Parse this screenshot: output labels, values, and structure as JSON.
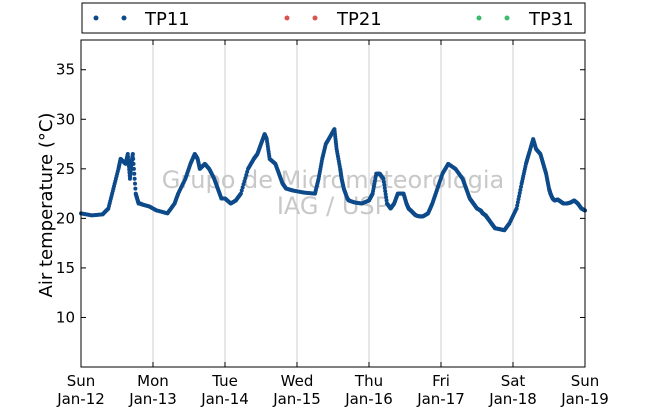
{
  "chart_data": {
    "type": "scatter",
    "ylabel": "Air temperature (°C)",
    "ylim": [
      5,
      38
    ],
    "y_ticks": [
      10,
      15,
      20,
      25,
      30,
      35
    ],
    "x_range_days": [
      0,
      7
    ],
    "x_ticks": [
      {
        "day": "Sun",
        "date": "Jan-12"
      },
      {
        "day": "Mon",
        "date": "Jan-13"
      },
      {
        "day": "Tue",
        "date": "Jan-14"
      },
      {
        "day": "Wed",
        "date": "Jan-15"
      },
      {
        "day": "Thu",
        "date": "Jan-16"
      },
      {
        "day": "Fri",
        "date": "Jan-17"
      },
      {
        "day": "Sat",
        "date": "Jan-18"
      },
      {
        "day": "Sun",
        "date": "Jan-19"
      }
    ],
    "vertical_grid": true,
    "legend_position": "top",
    "watermark": [
      "Grupo de Micrometeorologia",
      "IAG / USP"
    ],
    "series": [
      {
        "name": "TP11",
        "color": "#0d4a8a",
        "x": [
          0.0,
          0.15,
          0.3,
          0.38,
          0.45,
          0.52,
          0.55,
          0.62,
          0.65,
          0.68,
          0.7,
          0.72,
          0.76,
          0.78,
          0.8,
          0.82,
          0.85,
          0.95,
          1.05,
          1.2,
          1.3,
          1.35,
          1.45,
          1.52,
          1.58,
          1.62,
          1.65,
          1.72,
          1.78,
          1.85,
          1.9,
          1.95,
          2.0,
          2.08,
          2.15,
          2.22,
          2.32,
          2.4,
          2.45,
          2.5,
          2.55,
          2.58,
          2.62,
          2.7,
          2.75,
          2.8,
          2.85,
          2.95,
          3.1,
          3.25,
          3.3,
          3.35,
          3.4,
          3.48,
          3.52,
          3.55,
          3.6,
          3.62,
          3.65,
          3.7,
          3.72,
          3.8,
          3.9,
          4.0,
          4.05,
          4.1,
          4.15,
          4.2,
          4.25,
          4.3,
          4.35,
          4.4,
          4.48,
          4.52,
          4.55,
          4.58,
          4.62,
          4.65,
          4.7,
          4.75,
          4.82,
          4.88,
          4.95,
          5.02,
          5.1,
          5.2,
          5.3,
          5.35,
          5.4,
          5.45,
          5.5,
          5.55,
          5.58,
          5.62,
          5.65,
          5.7,
          5.75,
          5.82,
          5.88,
          5.95,
          6.05,
          6.12,
          6.18,
          6.22,
          6.28,
          6.32,
          6.38,
          6.42,
          6.46,
          6.5,
          6.52,
          6.55,
          6.58,
          6.62,
          6.66,
          6.7,
          6.75,
          6.8,
          6.85,
          6.9,
          6.95,
          7.0
        ],
        "y": [
          20.5,
          20.3,
          20.4,
          21.0,
          23.0,
          25.0,
          26.0,
          25.5,
          26.5,
          24.0,
          25.5,
          26.5,
          22.5,
          22.0,
          21.5,
          21.5,
          21.4,
          21.2,
          20.8,
          20.5,
          21.5,
          22.5,
          24.0,
          25.5,
          26.5,
          26.0,
          25.0,
          25.5,
          25.0,
          24.0,
          23.0,
          22.0,
          22.0,
          21.5,
          21.8,
          22.5,
          25.0,
          26.0,
          26.5,
          27.5,
          28.5,
          28.0,
          26.0,
          25.5,
          24.5,
          23.5,
          23.0,
          22.8,
          22.6,
          22.5,
          24.0,
          26.0,
          27.5,
          28.5,
          29.0,
          27.0,
          25.0,
          24.0,
          23.0,
          22.0,
          21.8,
          21.6,
          21.5,
          21.8,
          22.5,
          24.5,
          24.5,
          24.0,
          21.5,
          21.0,
          21.5,
          22.5,
          22.5,
          21.5,
          21.0,
          20.8,
          20.5,
          20.3,
          20.2,
          20.2,
          20.5,
          21.5,
          23.0,
          24.5,
          25.5,
          25.0,
          24.0,
          23.0,
          22.0,
          21.5,
          21.0,
          20.8,
          20.5,
          20.3,
          20.0,
          19.5,
          19.0,
          18.9,
          18.8,
          19.5,
          21.0,
          23.5,
          25.5,
          26.5,
          28.0,
          27.0,
          26.5,
          25.5,
          24.5,
          23.0,
          22.5,
          22.0,
          21.8,
          21.9,
          21.7,
          21.5,
          21.5,
          21.6,
          21.8,
          21.5,
          21.0,
          20.8
        ]
      },
      {
        "name": "TP21",
        "color": "#d9534f",
        "x": [],
        "y": []
      },
      {
        "name": "TP31",
        "color": "#3cbb6e",
        "x": [],
        "y": []
      }
    ]
  }
}
